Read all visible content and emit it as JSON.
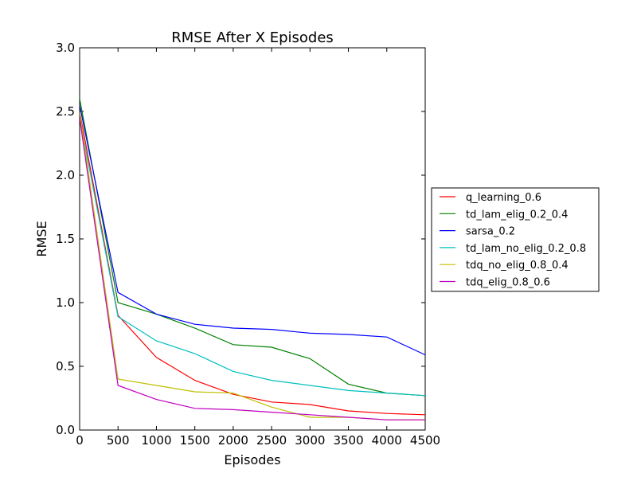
{
  "chart_data": {
    "type": "line",
    "title": "RMSE After X Episodes",
    "xlabel": "Episodes",
    "ylabel": "RMSE",
    "xlim": [
      0,
      4500
    ],
    "ylim": [
      0,
      3.0
    ],
    "xticks": [
      0,
      500,
      1000,
      1500,
      2000,
      2500,
      3000,
      3500,
      4000,
      4500
    ],
    "xtick_labels": [
      "0",
      "500",
      "1000",
      "1500",
      "2000",
      "2500",
      "3000",
      "3500",
      "4000",
      "4500"
    ],
    "yticks": [
      0,
      0.5,
      1.0,
      1.5,
      2.0,
      2.5,
      3.0
    ],
    "ytick_labels": [
      "0.0",
      "0.5",
      "1.0",
      "1.5",
      "2.0",
      "2.5",
      "3.0"
    ],
    "grid": false,
    "legend_position": "outside right",
    "x": [
      0,
      500,
      1000,
      1500,
      2000,
      2500,
      3000,
      3500,
      4000,
      4500
    ],
    "series": [
      {
        "name": "q_learning_0.6",
        "color": "#ff0000",
        "values": [
          2.5,
          0.9,
          0.57,
          0.39,
          0.28,
          0.22,
          0.2,
          0.15,
          0.13,
          0.12
        ]
      },
      {
        "name": "td_lam_elig_0.2_0.4",
        "color": "#008000",
        "values": [
          2.6,
          1.0,
          0.91,
          0.8,
          0.67,
          0.65,
          0.56,
          0.36,
          0.29,
          0.27
        ]
      },
      {
        "name": "sarsa_0.2",
        "color": "#0000ff",
        "values": [
          2.55,
          1.08,
          0.91,
          0.83,
          0.8,
          0.79,
          0.76,
          0.75,
          0.73,
          0.59
        ]
      },
      {
        "name": "td_lam_no_elig_0.2_0.8",
        "color": "#00bfbf",
        "values": [
          2.45,
          0.89,
          0.7,
          0.6,
          0.46,
          0.39,
          0.35,
          0.31,
          0.29,
          0.27
        ]
      },
      {
        "name": "tdq_no_elig_0.8_0.4",
        "color": "#bfbf00",
        "values": [
          2.5,
          0.4,
          0.35,
          0.3,
          0.29,
          0.18,
          0.1,
          0.1,
          0.08,
          0.08
        ]
      },
      {
        "name": "tdq_elig_0.8_0.6",
        "color": "#bf00bf",
        "values": [
          2.45,
          0.35,
          0.24,
          0.17,
          0.16,
          0.14,
          0.12,
          0.1,
          0.08,
          0.08
        ]
      }
    ]
  }
}
